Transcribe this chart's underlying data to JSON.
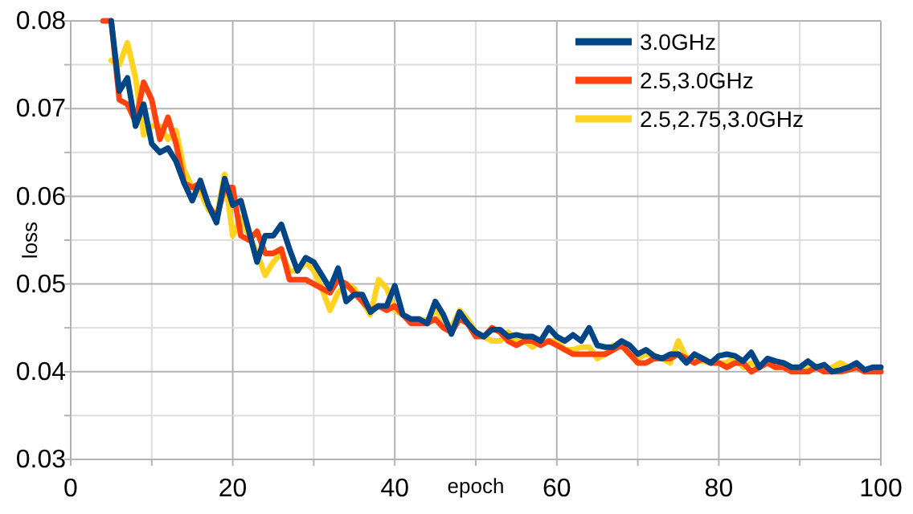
{
  "chart_data": {
    "type": "line",
    "xlabel": "epoch",
    "ylabel": "loss",
    "xlim": [
      0,
      100
    ],
    "xticks": [
      0,
      {
        "value": 10,
        "label": null
      },
      20,
      {
        "value": 30,
        "label": null
      },
      40,
      {
        "value": 50,
        "label": null
      },
      60,
      {
        "value": 70,
        "label": null
      },
      80,
      {
        "value": 90,
        "label": null
      },
      100
    ],
    "ylim": [
      0.03,
      0.08
    ],
    "yticks": [
      0.03,
      {
        "value": 0.035,
        "label": null
      },
      0.04,
      {
        "value": 0.045,
        "label": null
      },
      0.05,
      {
        "value": 0.055,
        "label": null
      },
      0.06,
      {
        "value": 0.065,
        "label": null
      },
      0.07,
      {
        "value": 0.075,
        "label": null
      },
      0.08
    ],
    "grid": true,
    "legend": "top right",
    "marker": "none",
    "line_style": "solid",
    "series": [
      {
        "name": "3.0GHz",
        "color": "#004586",
        "x": [
          5,
          6,
          7,
          8,
          9,
          10,
          11,
          12,
          13,
          14,
          15,
          16,
          17,
          18,
          19,
          20,
          21,
          22,
          23,
          24,
          25,
          26,
          27,
          28,
          29,
          30,
          31,
          32,
          33,
          34,
          35,
          36,
          37,
          38,
          39,
          40,
          41,
          42,
          43,
          44,
          45,
          46,
          47,
          48,
          49,
          50,
          51,
          52,
          53,
          54,
          55,
          56,
          57,
          58,
          59,
          60,
          61,
          62,
          63,
          64,
          65,
          66,
          67,
          68,
          69,
          70,
          71,
          72,
          73,
          74,
          75,
          76,
          77,
          78,
          79,
          80,
          81,
          82,
          83,
          84,
          85,
          86,
          87,
          88,
          89,
          90,
          91,
          92,
          93,
          94,
          95,
          96,
          97,
          98,
          99,
          100
        ],
        "values": [
          0.08,
          0.072,
          0.0735,
          0.068,
          0.0705,
          0.066,
          0.065,
          0.0655,
          0.064,
          0.0615,
          0.0595,
          0.0618,
          0.059,
          0.057,
          0.062,
          0.059,
          0.0595,
          0.056,
          0.0525,
          0.0555,
          0.0555,
          0.0568,
          0.054,
          0.0515,
          0.053,
          0.0525,
          0.051,
          0.0495,
          0.0518,
          0.048,
          0.0488,
          0.0488,
          0.0468,
          0.0475,
          0.0475,
          0.0498,
          0.0465,
          0.046,
          0.046,
          0.0455,
          0.048,
          0.0465,
          0.0443,
          0.0468,
          0.0455,
          0.0445,
          0.044,
          0.0448,
          0.0448,
          0.044,
          0.0442,
          0.044,
          0.044,
          0.0435,
          0.045,
          0.044,
          0.0435,
          0.0442,
          0.0435,
          0.045,
          0.043,
          0.0428,
          0.0428,
          0.0435,
          0.043,
          0.042,
          0.0425,
          0.0418,
          0.0415,
          0.042,
          0.042,
          0.041,
          0.042,
          0.0415,
          0.041,
          0.0418,
          0.042,
          0.0418,
          0.0412,
          0.0422,
          0.0405,
          0.0415,
          0.0412,
          0.041,
          0.0405,
          0.0405,
          0.0412,
          0.0405,
          0.0408,
          0.04,
          0.0402,
          0.0405,
          0.041,
          0.0402,
          0.0405,
          0.0405
        ]
      },
      {
        "name": "2.5,3.0GHz",
        "color": "#ff420e",
        "x": [
          4,
          5,
          6,
          7,
          8,
          9,
          10,
          11,
          12,
          13,
          14,
          15,
          16,
          17,
          18,
          19,
          20,
          21,
          22,
          23,
          24,
          25,
          26,
          27,
          28,
          29,
          30,
          31,
          32,
          33,
          34,
          35,
          36,
          37,
          38,
          39,
          40,
          41,
          42,
          43,
          44,
          45,
          46,
          47,
          48,
          49,
          50,
          51,
          52,
          53,
          54,
          55,
          56,
          57,
          58,
          59,
          60,
          61,
          62,
          63,
          64,
          65,
          66,
          67,
          68,
          69,
          70,
          71,
          72,
          73,
          74,
          75,
          76,
          77,
          78,
          79,
          80,
          81,
          82,
          83,
          84,
          85,
          86,
          87,
          88,
          89,
          90,
          91,
          92,
          93,
          94,
          95,
          96,
          97,
          98,
          99,
          100
        ],
        "values": [
          0.08,
          0.08,
          0.071,
          0.0705,
          0.0685,
          0.073,
          0.071,
          0.0665,
          0.069,
          0.066,
          0.0615,
          0.061,
          0.0615,
          0.059,
          0.0575,
          0.061,
          0.061,
          0.0555,
          0.055,
          0.056,
          0.0535,
          0.0535,
          0.054,
          0.0505,
          0.0505,
          0.0505,
          0.05,
          0.0495,
          0.049,
          0.0505,
          0.05,
          0.049,
          0.048,
          0.047,
          0.0475,
          0.047,
          0.0475,
          0.0465,
          0.0455,
          0.0455,
          0.0455,
          0.046,
          0.045,
          0.0445,
          0.046,
          0.0455,
          0.044,
          0.044,
          0.045,
          0.0445,
          0.0435,
          0.043,
          0.0435,
          0.0435,
          0.043,
          0.0435,
          0.043,
          0.0425,
          0.042,
          0.042,
          0.042,
          0.042,
          0.042,
          0.0425,
          0.043,
          0.042,
          0.041,
          0.041,
          0.0415,
          0.0415,
          0.0415,
          0.042,
          0.0415,
          0.041,
          0.0415,
          0.041,
          0.041,
          0.0405,
          0.041,
          0.041,
          0.04,
          0.0405,
          0.041,
          0.0405,
          0.0405,
          0.04,
          0.04,
          0.04,
          0.0405,
          0.04,
          0.04,
          0.04,
          0.0402,
          0.0405,
          0.04,
          0.04,
          0.04
        ]
      },
      {
        "name": "2.5,2.75,3.0GHz",
        "color": "#ffd320",
        "x": [
          5,
          6,
          7,
          8,
          9,
          10,
          11,
          12,
          13,
          14,
          15,
          16,
          17,
          18,
          19,
          20,
          21,
          22,
          23,
          24,
          25,
          26,
          27,
          28,
          29,
          30,
          31,
          32,
          33,
          34,
          35,
          36,
          37,
          38,
          39,
          40,
          41,
          42,
          43,
          44,
          45,
          46,
          47,
          48,
          49,
          50,
          51,
          52,
          53,
          54,
          55,
          56,
          57,
          58,
          59,
          60,
          61,
          62,
          63,
          64,
          65,
          66,
          67,
          68,
          69,
          70,
          71,
          72,
          73,
          74,
          75,
          76,
          77,
          78,
          79,
          80,
          81,
          82,
          83,
          84,
          85,
          86,
          87,
          88,
          89,
          90,
          91,
          92,
          93,
          94,
          95,
          96,
          97,
          98
        ],
        "values": [
          0.0755,
          0.075,
          0.0775,
          0.0735,
          0.067,
          0.068,
          0.068,
          0.0665,
          0.0675,
          0.063,
          0.061,
          0.0605,
          0.0585,
          0.0575,
          0.0625,
          0.0555,
          0.0575,
          0.0555,
          0.0535,
          0.051,
          0.0525,
          0.0535,
          0.0515,
          0.0515,
          0.0525,
          0.0515,
          0.0495,
          0.047,
          0.049,
          0.05,
          0.0495,
          0.048,
          0.0465,
          0.0505,
          0.0495,
          0.047,
          0.0465,
          0.046,
          0.046,
          0.0458,
          0.047,
          0.046,
          0.045,
          0.047,
          0.046,
          0.0445,
          0.044,
          0.0435,
          0.0435,
          0.0445,
          0.0435,
          0.0435,
          0.0428,
          0.0435,
          0.0435,
          0.0435,
          0.0425,
          0.0425,
          0.0428,
          0.0428,
          0.0415,
          0.042,
          0.043,
          0.043,
          0.042,
          0.0415,
          0.042,
          0.0418,
          0.0415,
          0.041,
          0.0435,
          0.0415,
          0.0418,
          0.0412,
          0.041,
          0.041,
          0.041,
          0.0418,
          0.0405,
          0.041,
          0.0405,
          0.041,
          0.0405,
          0.041,
          0.0405,
          0.0402,
          0.0405,
          0.0405,
          0.04,
          0.0405,
          0.041,
          0.0405,
          0.0405,
          0.04
        ]
      }
    ]
  }
}
